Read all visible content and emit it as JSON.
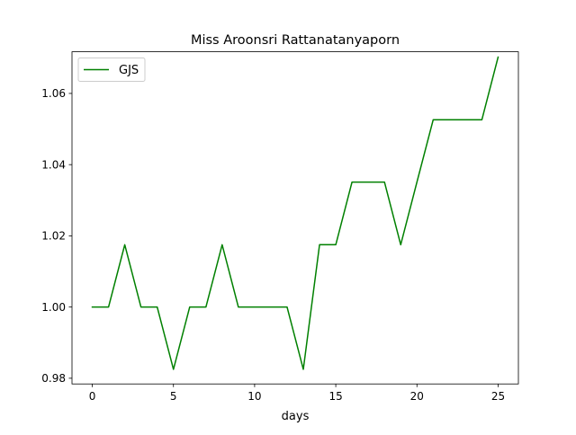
{
  "chart_data": {
    "type": "line",
    "title": "Miss Aroonsri Rattanatanyaporn",
    "xlabel": "days",
    "ylabel": "",
    "xlim": [
      -1.25,
      26.25
    ],
    "ylim": [
      0.9784,
      1.0717
    ],
    "xticks": [
      0,
      5,
      10,
      15,
      20,
      25
    ],
    "xtick_labels": [
      "0",
      "5",
      "10",
      "15",
      "20",
      "25"
    ],
    "yticks": [
      0.98,
      1.0,
      1.02,
      1.04,
      1.06
    ],
    "ytick_labels": [
      "0.98",
      "1.00",
      "1.02",
      "1.04",
      "1.06"
    ],
    "grid": false,
    "legend_position": "upper left",
    "series": [
      {
        "name": "GJS",
        "color": "#008000",
        "x": [
          0,
          1,
          2,
          3,
          4,
          5,
          6,
          7,
          8,
          9,
          10,
          11,
          12,
          13,
          14,
          15,
          16,
          17,
          18,
          19,
          20,
          21,
          22,
          23,
          24,
          25
        ],
        "y": [
          1.0,
          1.0,
          1.0175,
          1.0,
          1.0,
          0.9825,
          1.0,
          1.0,
          1.0175,
          1.0,
          1.0,
          1.0,
          1.0,
          0.9825,
          1.0175,
          1.0175,
          1.0351,
          1.0351,
          1.0351,
          1.0175,
          1.0351,
          1.0526,
          1.0526,
          1.0526,
          1.0526,
          1.0702
        ]
      }
    ]
  }
}
